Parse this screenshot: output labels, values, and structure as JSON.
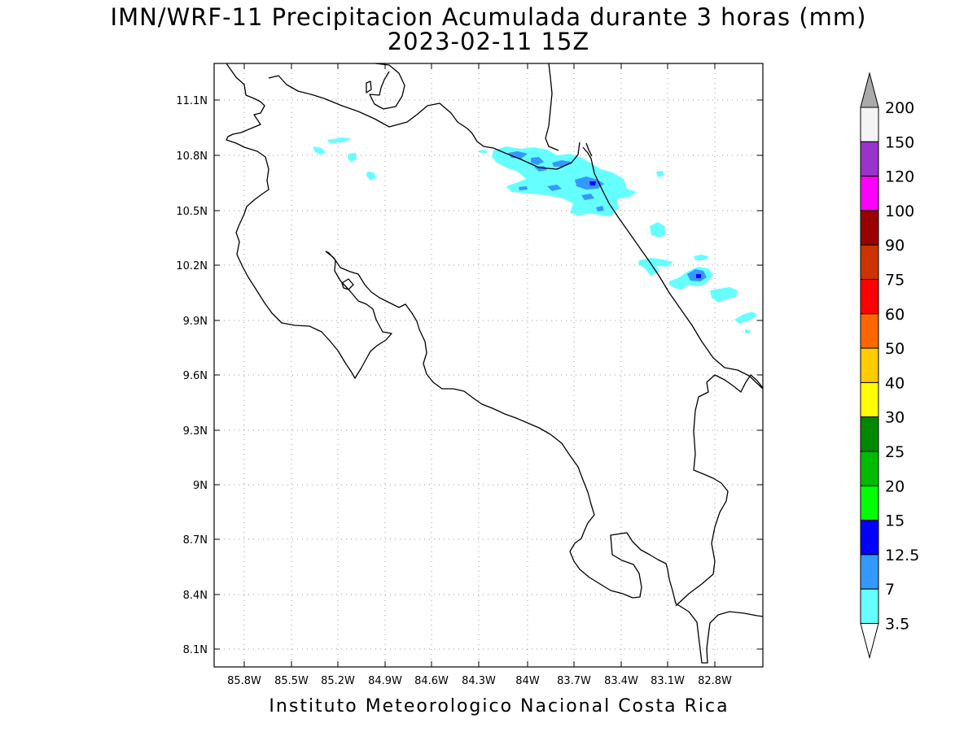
{
  "map": {
    "title": "IMN/WRF-11 Precipitacion Acumulada durante 3 horas (mm)",
    "subtitle": "2023-02-11 15Z",
    "footer": "Instituto Meteorologico Nacional Costa Rica",
    "lat_labels": [
      "11.1N",
      "10.8N",
      "10.5N",
      "10.2N",
      "9.9N",
      "9.6N",
      "9.3N",
      "9N",
      "8.7N",
      "8.4N",
      "8.1N"
    ],
    "lon_labels": [
      "85.8W",
      "85.5W",
      "85.2W",
      "84.9W",
      "84.6W",
      "84.3W",
      "84W",
      "83.7W",
      "83.4W",
      "83.1W",
      "82.8W"
    ]
  },
  "legend": {
    "levels": [
      {
        "label": "200",
        "color": "#f4f4f4"
      },
      {
        "label": "150",
        "color": "#9933cc"
      },
      {
        "label": "120",
        "color": "#ff00ff"
      },
      {
        "label": "100",
        "color": "#990000"
      },
      {
        "label": "90",
        "color": "#cc3300"
      },
      {
        "label": "75",
        "color": "#ff0000"
      },
      {
        "label": "60",
        "color": "#ff6600"
      },
      {
        "label": "50",
        "color": "#ffcc00"
      },
      {
        "label": "40",
        "color": "#ffff00"
      },
      {
        "label": "30",
        "color": "#008800"
      },
      {
        "label": "25",
        "color": "#00bb00"
      },
      {
        "label": "20",
        "color": "#00ff00"
      },
      {
        "label": "15",
        "color": "#0000ff"
      },
      {
        "label": "12.5",
        "color": "#3399ff"
      },
      {
        "label": "7",
        "color": "#66ffff"
      },
      {
        "label": "3.5",
        "color": "#ffffff"
      }
    ],
    "top_arrow_color": "#aaaaaa",
    "bottom_arrow_color": "#ffffff"
  },
  "colors": {
    "rain_light": "#66ffff",
    "rain_medium": "#3399ff",
    "rain_heavy": "#0000ff"
  }
}
